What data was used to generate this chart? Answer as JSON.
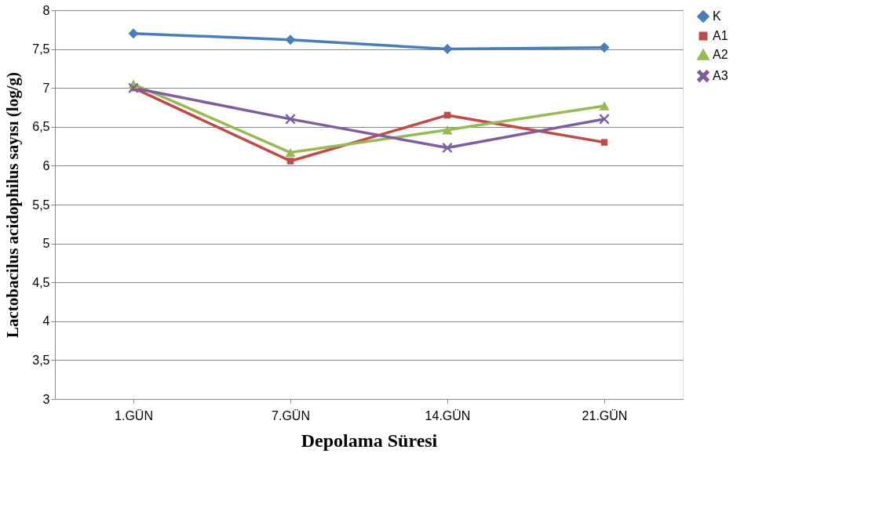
{
  "chart_data": {
    "type": "line",
    "xlabel": "Depolama Süresi",
    "ylabel": "Lactobacilus acidophilus sayısı (log/g)",
    "categories": [
      "1.GÜN",
      "7.GÜN",
      "14.GÜN",
      "21.GÜN"
    ],
    "series": [
      {
        "name": "K",
        "color": "#4a7ebb",
        "marker": "diamond",
        "values": [
          7.7,
          7.62,
          7.5,
          7.52
        ]
      },
      {
        "name": "A1",
        "color": "#be4b48",
        "marker": "square",
        "values": [
          7.0,
          6.06,
          6.65,
          6.3
        ]
      },
      {
        "name": "A2",
        "color": "#98b954",
        "marker": "triangle",
        "values": [
          7.05,
          6.17,
          6.46,
          6.77
        ]
      },
      {
        "name": "A3",
        "color": "#7d5fa0",
        "marker": "cross",
        "values": [
          7.0,
          6.6,
          6.23,
          6.6
        ]
      }
    ],
    "ylim": [
      3,
      8
    ],
    "yticks": [
      3,
      {
        "value": 3.5,
        "label": "3,5"
      },
      4,
      {
        "value": 4.5,
        "label": "4,5"
      },
      5,
      {
        "value": 5.5,
        "label": "5,5"
      },
      6,
      {
        "value": 6.5,
        "label": "6,5"
      },
      7,
      {
        "value": 7.5,
        "label": "7,5"
      },
      8
    ],
    "grid": "y",
    "legend": "right",
    "line_style": "solid"
  }
}
